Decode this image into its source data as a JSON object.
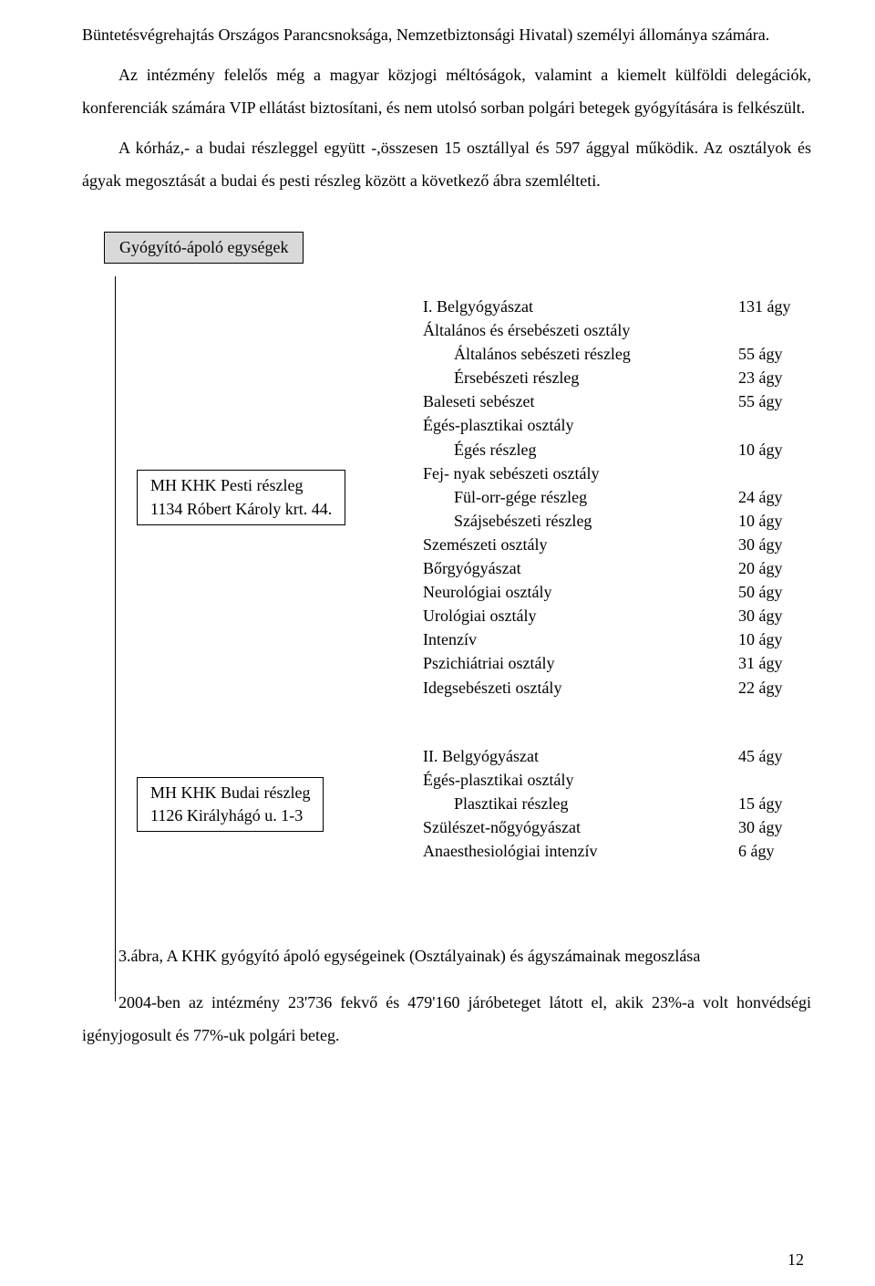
{
  "colors": {
    "text": "#000000",
    "bg": "#ffffff",
    "box_fill": "#d9d9d9",
    "line": "#000000"
  },
  "typography": {
    "body_fontsize_pt": 13,
    "font_family": "Times New Roman",
    "line_height_body": 2.0
  },
  "intro_a": "Büntetésvégrehajtás Országos Parancsnoksága, Nemzetbiztonsági Hivatal) személyi állománya számára.",
  "intro_b": "Az intézmény felelős még a magyar közjogi méltóságok, valamint a kiemelt külföldi delegációk, konferenciák számára  VIP ellátást  biztosítani, és nem utolsó sorban polgári betegek gyógyítására is felkészült.",
  "intro_c": "A kórház,- a budai részleggel együtt -,összesen 15 osztállyal és 597 ággyal működik. Az osztályok és ágyak megosztását a budai és pesti részleg között a következő ábra szemlélteti.",
  "header_box": "Gyógyító-ápoló egységek",
  "dept_pesti": {
    "line1": "MH KHK Pesti részleg",
    "line2": "1134 Róbert Károly krt. 44.",
    "items": [
      {
        "label": "I. Belgyógyászat",
        "value": "131 ágy",
        "indent": 0
      },
      {
        "label": "Általános és érsebészeti osztály",
        "value": "",
        "indent": 0
      },
      {
        "label": "Általános sebészeti részleg",
        "value": "55 ágy",
        "indent": 1
      },
      {
        "label": "Érsebészeti részleg",
        "value": "23 ágy",
        "indent": 1
      },
      {
        "label": "Baleseti sebészet",
        "value": "55 ágy",
        "indent": 0
      },
      {
        "label": "Égés-plasztikai osztály",
        "value": "",
        "indent": 0
      },
      {
        "label": "Égés részleg",
        "value": "10 ágy",
        "indent": 1
      },
      {
        "label": "Fej- nyak sebészeti osztály",
        "value": "",
        "indent": 0
      },
      {
        "label": "Fül-orr-gége részleg",
        "value": "24 ágy",
        "indent": 1
      },
      {
        "label": "Szájsebészeti részleg",
        "value": "10 ágy",
        "indent": 1
      },
      {
        "label": "Szemészeti osztály",
        "value": "30 ágy",
        "indent": 0
      },
      {
        "label": "Bőrgyógyászat",
        "value": "20 ágy",
        "indent": 0
      },
      {
        "label": "Neurológiai osztály",
        "value": "50 ágy",
        "indent": 0
      },
      {
        "label": "Urológiai osztály",
        "value": "30 ágy",
        "indent": 0
      },
      {
        "label": "Intenzív",
        "value": "10 ágy",
        "indent": 0
      },
      {
        "label": "Pszichiátriai osztály",
        "value": "31 ágy",
        "indent": 0
      },
      {
        "label": "Idegsebészeti osztály",
        "value": "22 ágy",
        "indent": 0
      }
    ]
  },
  "dept_budai": {
    "line1": "MH KHK Budai részleg",
    "line2": "1126 Királyhágó u. 1-3",
    "items": [
      {
        "label": "II. Belgyógyászat",
        "value": "45 ágy",
        "indent": 0
      },
      {
        "label": "Égés-plasztikai osztály",
        "value": "",
        "indent": 0
      },
      {
        "label": "Plasztikai részleg",
        "value": "15 ágy",
        "indent": 1
      },
      {
        "label": "Szülészet-nőgyógyászat",
        "value": "30 ágy",
        "indent": 0
      },
      {
        "label": "Anaesthesiológiai intenzív",
        "value": "6 ágy",
        "indent": 0
      }
    ]
  },
  "caption": "3.ábra, A KHK gyógyító ápoló egységeinek (Osztályainak) és ágyszámainak megoszlása",
  "last_para": "2004-ben az intézmény 23'736 fekvő és 479'160 járóbeteget látott el, akik 23%-a volt honvédségi igényjogosult és 77%-uk polgári beteg.",
  "page_number": "12"
}
